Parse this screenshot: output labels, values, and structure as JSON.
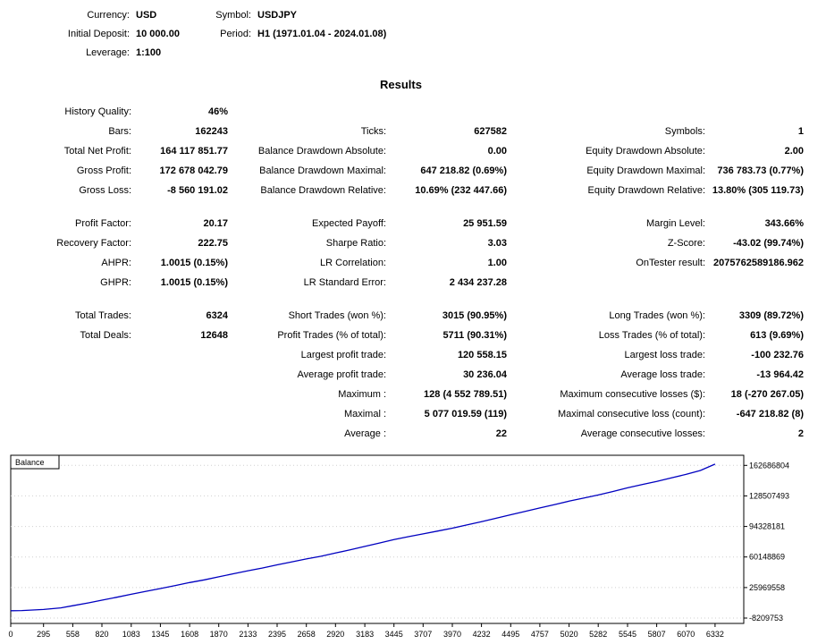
{
  "results_title": "Results",
  "header": {
    "rows": [
      {
        "l1": "Currency:",
        "v1": "USD",
        "l2": "Symbol:",
        "v2": "USDJPY"
      },
      {
        "l1": "Initial Deposit:",
        "v1": "10 000.00",
        "l2": "Period:",
        "v2": "H1 (1971.01.04 - 2024.01.08)"
      },
      {
        "l1": "Leverage:",
        "v1": "1:100",
        "l2": "",
        "v2": ""
      }
    ]
  },
  "stats": {
    "groups": [
      {
        "rows": [
          [
            "History Quality:",
            "46%",
            "",
            "",
            "",
            ""
          ],
          [
            "Bars:",
            "162243",
            "Ticks:",
            "627582",
            "Symbols:",
            "1"
          ],
          [
            "Total Net Profit:",
            "164 117 851.77",
            "Balance Drawdown Absolute:",
            "0.00",
            "Equity Drawdown Absolute:",
            "2.00"
          ],
          [
            "Gross Profit:",
            "172 678 042.79",
            "Balance Drawdown Maximal:",
            "647 218.82 (0.69%)",
            "Equity Drawdown Maximal:",
            "736 783.73 (0.77%)"
          ],
          [
            "Gross Loss:",
            "-8 560 191.02",
            "Balance Drawdown Relative:",
            "10.69% (232 447.66)",
            "Equity Drawdown Relative:",
            "13.80% (305 119.73)"
          ]
        ]
      },
      {
        "rows": [
          [
            "Profit Factor:",
            "20.17",
            "Expected Payoff:",
            "25 951.59",
            "Margin Level:",
            "343.66%"
          ],
          [
            "Recovery Factor:",
            "222.75",
            "Sharpe Ratio:",
            "3.03",
            "Z-Score:",
            "-43.02 (99.74%)"
          ],
          [
            "AHPR:",
            "1.0015 (0.15%)",
            "LR Correlation:",
            "1.00",
            "OnTester result:",
            "2075762589186.962"
          ],
          [
            "GHPR:",
            "1.0015 (0.15%)",
            "LR Standard Error:",
            "2 434 237.28",
            "",
            ""
          ]
        ]
      },
      {
        "rows": [
          [
            "Total Trades:",
            "6324",
            "Short Trades (won %):",
            "3015 (90.95%)",
            "Long Trades (won %):",
            "3309 (89.72%)"
          ],
          [
            "Total Deals:",
            "12648",
            "Profit Trades (% of total):",
            "5711 (90.31%)",
            "Loss Trades (% of total):",
            "613 (9.69%)"
          ],
          [
            "",
            "",
            "Largest profit trade:",
            "120 558.15",
            "Largest loss trade:",
            "-100 232.76"
          ],
          [
            "",
            "",
            "Average profit trade:",
            "30 236.04",
            "Average loss trade:",
            "-13 964.42"
          ],
          [
            "",
            "",
            "Maximum :",
            "128 (4 552 789.51)",
            "Maximum consecutive losses ($):",
            "18 (-270 267.05)"
          ],
          [
            "",
            "",
            "Maximal :",
            "5 077 019.59 (119)",
            "Maximal consecutive loss (count):",
            "-647 218.82 (8)"
          ],
          [
            "",
            "",
            "Average :",
            "22",
            "Average consecutive losses:",
            "2"
          ]
        ]
      }
    ]
  },
  "chart_data": {
    "type": "line",
    "title": "Balance",
    "line_color": "#0000c0",
    "grid": true,
    "legend_position": "top-left",
    "xlim": [
      0,
      6590
    ],
    "ylim": [
      -14200000,
      174000000
    ],
    "x_ticks": [
      0,
      295,
      558,
      820,
      1083,
      1345,
      1608,
      1870,
      2133,
      2395,
      2658,
      2920,
      3183,
      3445,
      3707,
      3970,
      4232,
      4495,
      4757,
      5020,
      5282,
      5545,
      5807,
      6070,
      6332
    ],
    "y_ticks": [
      162686804,
      128507493,
      94328181,
      60148869,
      25969558,
      -8209753
    ],
    "y_tick_labels": [
      "162686804",
      "128507493",
      "94328181",
      "60148869",
      "25969558",
      "-8209753"
    ],
    "series": [
      {
        "name": "Balance",
        "x": [
          0,
          100,
          295,
          450,
          558,
          700,
          820,
          950,
          1083,
          1210,
          1345,
          1480,
          1608,
          1740,
          1870,
          2000,
          2133,
          2260,
          2395,
          2530,
          2658,
          2790,
          2920,
          3050,
          3183,
          3310,
          3445,
          3580,
          3707,
          3840,
          3970,
          4100,
          4232,
          4360,
          4495,
          4620,
          4757,
          4890,
          5020,
          5150,
          5282,
          5410,
          5545,
          5680,
          5807,
          5940,
          6070,
          6200,
          6332
        ],
        "y": [
          10000,
          200000,
          1400000,
          3200000,
          5600000,
          8800000,
          11800000,
          15000000,
          18400000,
          21600000,
          24800000,
          28200000,
          31500000,
          34600000,
          38000000,
          41400000,
          44800000,
          47800000,
          51400000,
          54800000,
          58000000,
          61000000,
          64600000,
          68200000,
          72000000,
          75600000,
          79600000,
          83000000,
          86000000,
          89200000,
          92400000,
          96000000,
          99600000,
          103400000,
          107400000,
          111000000,
          115000000,
          118800000,
          122600000,
          126000000,
          129600000,
          133400000,
          137600000,
          141400000,
          144800000,
          148800000,
          152600000,
          157000000,
          164127851
        ]
      }
    ]
  }
}
